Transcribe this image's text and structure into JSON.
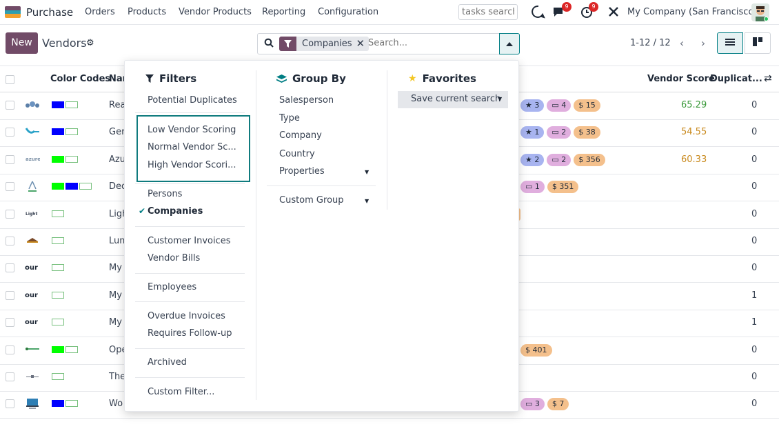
{
  "nav": {
    "app_name": "Purchase",
    "menu": [
      "Orders",
      "Products",
      "Vendor Products",
      "Reporting",
      "Configuration"
    ],
    "tasks_search_placeholder": "tasks search",
    "messages_badge": "9",
    "activities_badge": "9",
    "company": "My Company (San Francisco)",
    "app_icon_colors": [
      "#714b67",
      "#2f9fb0",
      "#f2a02e"
    ]
  },
  "control": {
    "new_label": "New",
    "title": "Vendors",
    "facet_label": "Companies",
    "search_placeholder": "Search...",
    "pager": "1-12 / 12"
  },
  "table": {
    "headers": {
      "color_codes": "Color Codes",
      "name": "Nar",
      "vendor_score": "Vendor Score",
      "duplicates": "Duplicat..."
    },
    "rows": [
      {
        "name": "Rea",
        "logo": "logo-1",
        "swatches": [
          "#0000ff",
          "empty"
        ],
        "tags": [
          {
            "c": "blue",
            "t": "★ 3"
          },
          {
            "c": "purple",
            "t": "▭ 4"
          },
          {
            "c": "orange",
            "t": "$ 15"
          }
        ],
        "score": "65.29",
        "score_color": "#3c9a3c",
        "dup": "0"
      },
      {
        "name": "Ger",
        "logo": "logo-2",
        "swatches": [
          "#0000ff",
          "empty"
        ],
        "tags": [
          {
            "c": "blue",
            "t": "★ 1"
          },
          {
            "c": "purple",
            "t": "▭ 2"
          },
          {
            "c": "orange",
            "t": "$ 38"
          }
        ],
        "score": "54.55",
        "score_color": "#c98a1e",
        "dup": "0"
      },
      {
        "name": "Azu",
        "logo": "logo-3",
        "swatches": [
          "#00ff00",
          "empty"
        ],
        "tags": [
          {
            "c": "blue",
            "t": "★ 2"
          },
          {
            "c": "purple",
            "t": "▭ 2"
          },
          {
            "c": "orange",
            "t": "$ 356"
          }
        ],
        "score": "60.33",
        "score_color": "#c98a1e",
        "dup": "0"
      },
      {
        "name": "Dec",
        "logo": "logo-4",
        "swatches": [
          "#00ff00",
          "#0000ff",
          "empty"
        ],
        "tags": [
          {
            "c": "purple",
            "t": "▭ 1"
          },
          {
            "c": "orange",
            "t": "$ 351"
          }
        ],
        "score": "",
        "score_color": "#374151",
        "dup": "0"
      },
      {
        "name": "Ligh",
        "logo": "logo-5",
        "swatches": [
          "empty"
        ],
        "tags": [
          {
            "c": "orange",
            "t": ""
          }
        ],
        "score": "",
        "score_color": "#374151",
        "dup": "0"
      },
      {
        "name": "Lum",
        "logo": "logo-6",
        "swatches": [
          "empty"
        ],
        "tags": [],
        "score": "",
        "score_color": "#374151",
        "dup": "0"
      },
      {
        "name": "My",
        "logo": "logo-7",
        "swatches": [
          "empty"
        ],
        "tags": [],
        "score": "",
        "score_color": "#374151",
        "dup": "0"
      },
      {
        "name": "My",
        "logo": "logo-8",
        "swatches": [
          "empty"
        ],
        "tags": [],
        "score": "",
        "score_color": "#374151",
        "dup": "1"
      },
      {
        "name": "My",
        "logo": "logo-9",
        "swatches": [
          "empty"
        ],
        "tags": [],
        "score": "",
        "score_color": "#374151",
        "dup": "1"
      },
      {
        "name": "Ope",
        "logo": "logo-10",
        "swatches": [
          "#00ff00",
          "empty"
        ],
        "tags": [
          {
            "c": "orange",
            "t": "$ 401"
          }
        ],
        "score": "",
        "score_color": "#374151",
        "dup": "0"
      },
      {
        "name": "The",
        "logo": "logo-11",
        "swatches": [
          "empty"
        ],
        "tags": [],
        "score": "",
        "score_color": "#374151",
        "dup": "0"
      },
      {
        "name": "Wo",
        "logo": "logo-12",
        "swatches": [
          "#0000ff",
          "empty"
        ],
        "tags": [
          {
            "c": "purple",
            "t": "▭ 3"
          },
          {
            "c": "orange",
            "t": "$ 7"
          }
        ],
        "score": "",
        "score_color": "#374151",
        "dup": "0"
      }
    ]
  },
  "dropdown": {
    "filters": {
      "title": "Filters",
      "items": [
        "Potential Duplicates",
        "Low Vendor Scoring",
        "Normal Vendor Sc...",
        "High Vendor Scori...",
        "Persons",
        "Companies",
        "Customer Invoices",
        "Vendor Bills",
        "Employees",
        "Overdue Invoices",
        "Requires Follow-up",
        "Archived",
        "Custom Filter..."
      ]
    },
    "groupby": {
      "title": "Group By",
      "items": [
        "Salesperson",
        "Type",
        "Company",
        "Country",
        "Properties",
        "Custom Group"
      ]
    },
    "favorites": {
      "title": "Favorites",
      "save_label": "Save current search"
    }
  }
}
